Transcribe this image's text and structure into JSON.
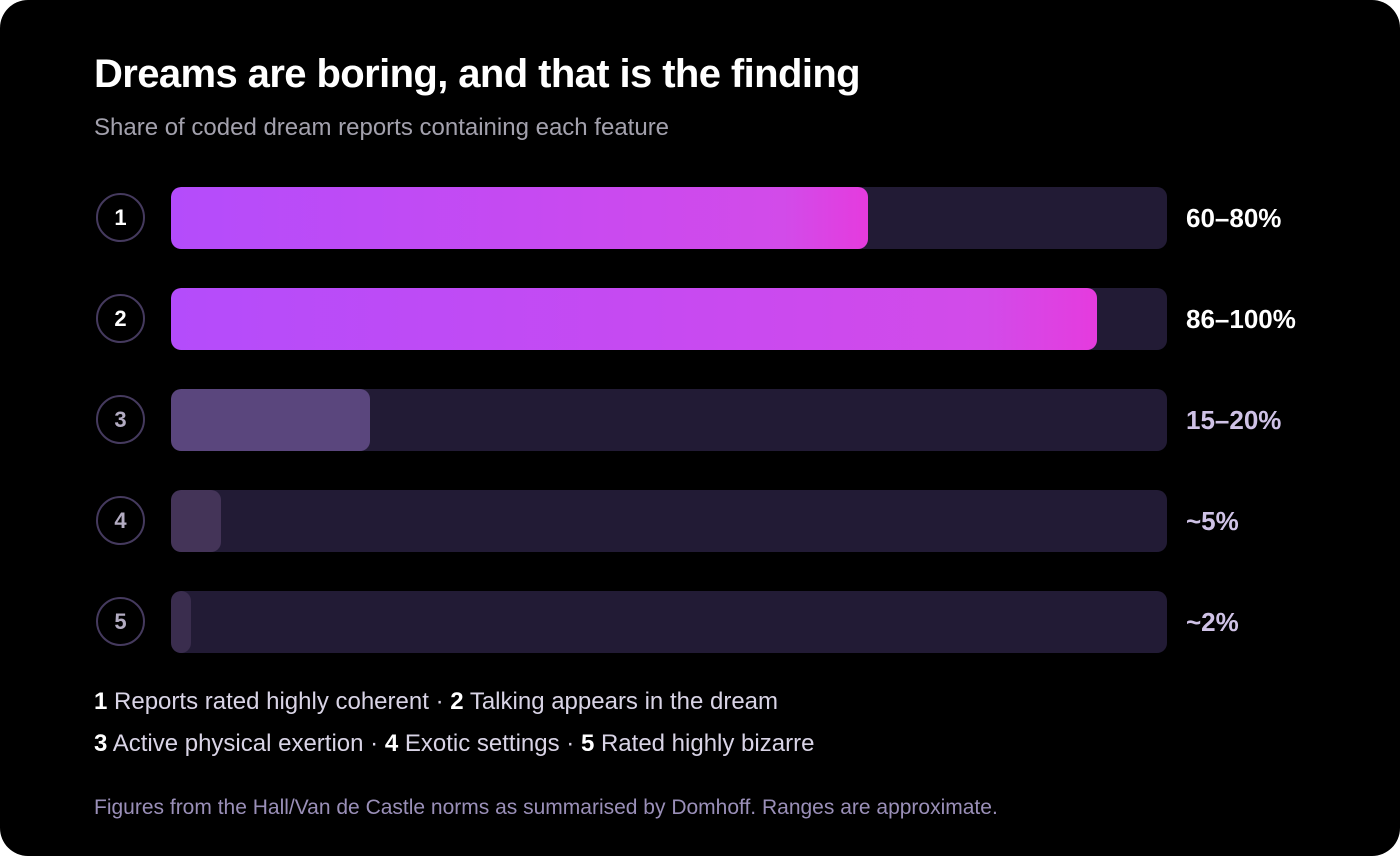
{
  "chart_data": {
    "type": "bar",
    "orientation": "horizontal",
    "title": "Dreams are boring, and that is the finding",
    "subtitle": "Share of coded dream reports containing each feature",
    "xlim": [
      0,
      100
    ],
    "categories": [
      "1",
      "2",
      "3",
      "4",
      "5"
    ],
    "values": [
      70,
      93,
      20,
      5,
      2
    ],
    "value_labels": [
      "60–80%",
      "86–100%",
      "15–20%",
      "~5%",
      "~2%"
    ],
    "highlight": [
      true,
      true,
      false,
      false,
      false
    ],
    "legend": {
      "line1": [
        {
          "num": "1",
          "text": "Reports rated highly coherent"
        },
        {
          "sep": "·"
        },
        {
          "num": "2",
          "text": "Talking appears in the dream"
        }
      ],
      "line2": [
        {
          "num": "3",
          "text": "Active physical exertion"
        },
        {
          "sep": "·"
        },
        {
          "num": "4",
          "text": "Exotic settings"
        },
        {
          "sep": "·"
        },
        {
          "num": "5",
          "text": "Rated highly bizarre"
        }
      ]
    },
    "footnote": "Figures from the Hall/Van de Castle norms as summarised by Domhoff. Ranges are approximate."
  },
  "colors": {
    "background": "#000000",
    "track": "#221b35",
    "highlight_start": "#b44cfb",
    "highlight_end": "#e53bde",
    "muted_fill": "#5a467d"
  }
}
